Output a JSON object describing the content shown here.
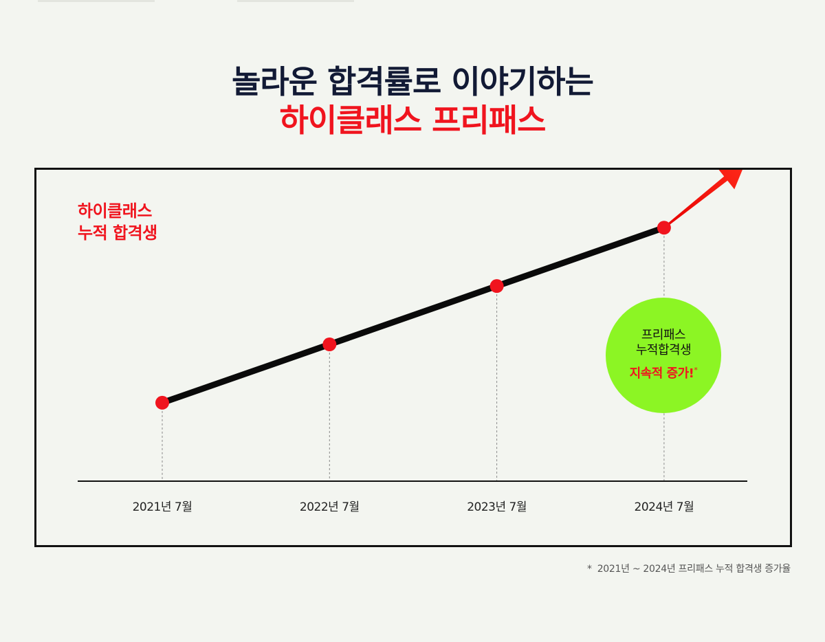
{
  "headline": {
    "line1": "놀라운 합격률로 이야기하는",
    "line2": "하이클래스 프리패스"
  },
  "colors": {
    "accent_red": "#f0141e",
    "navy": "#121a35",
    "badge_green": "#8cf524",
    "line": "#0a0a0a",
    "background": "#f3f5f0"
  },
  "chart_data": {
    "type": "line",
    "title": "",
    "series_label": [
      "하이클래스",
      "누적 합격생"
    ],
    "categories": [
      "2021년 7월",
      "2022년 7월",
      "2023년 7월",
      "2024년 7월"
    ],
    "series": [
      {
        "values": [
          1,
          2,
          3,
          4
        ]
      }
    ],
    "ylim": [
      0,
      5
    ],
    "y_axis_shown": false,
    "grid": false,
    "trend_arrow": "up-right",
    "marker_color": "#f0141e"
  },
  "badge": {
    "line1": "프리패스",
    "line2": "누적합격생",
    "line3": "지속적 증가!",
    "mark": "*"
  },
  "footnote": {
    "mark": "*",
    "text": "2021년 ~ 2024년 프리패스 누적 합격생 증가율"
  }
}
